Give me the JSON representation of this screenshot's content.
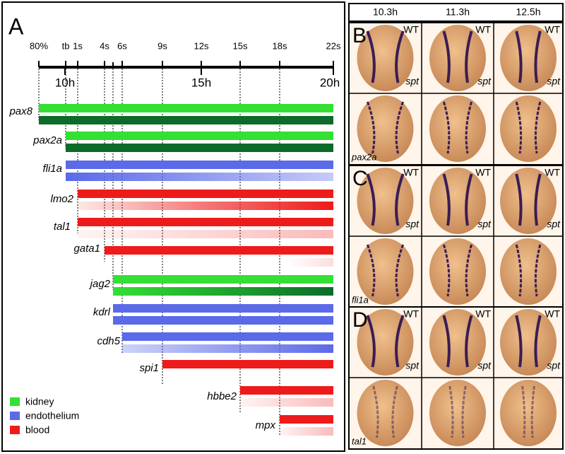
{
  "panel_a": {
    "label": "A",
    "stages": [
      "80%",
      "tb",
      "1s",
      "4s",
      "6s",
      "9s",
      "12s",
      "15s",
      "18s",
      "22s"
    ],
    "hours": [
      "10h",
      "15h",
      "20h"
    ],
    "genes": [
      {
        "name": "pax8",
        "color": "#33e033"
      },
      {
        "name": "pax2a",
        "color": "#33e033"
      },
      {
        "name": "fli1a",
        "color": "#5a6ae8"
      },
      {
        "name": "lmo2",
        "color": "#ee1b1b"
      },
      {
        "name": "tal1",
        "color": "#ee1b1b"
      },
      {
        "name": "gata1",
        "color": "#ee1b1b"
      },
      {
        "name": "jag2",
        "color": "#33e033"
      },
      {
        "name": "kdrl",
        "color": "#5a6ae8"
      },
      {
        "name": "cdh5",
        "color": "#5a6ae8"
      },
      {
        "name": "spi1",
        "color": "#ee1b1b"
      },
      {
        "name": "hbbe2",
        "color": "#ee1b1b"
      },
      {
        "name": "mpx",
        "color": "#ee1b1b"
      }
    ],
    "legend": [
      {
        "label": "kidney",
        "color": "#33e033"
      },
      {
        "label": "endothelium",
        "color": "#5a6ae8"
      },
      {
        "label": "blood",
        "color": "#ee1b1b"
      }
    ]
  },
  "times": [
    "10.3h",
    "11.3h",
    "12.5h"
  ],
  "panels": [
    {
      "label": "B",
      "gene": "pax2a",
      "wt": "WT",
      "mutant": "spt"
    },
    {
      "label": "C",
      "gene": "fli1a",
      "wt": "WT",
      "mutant": "spt"
    },
    {
      "label": "D",
      "gene": "tal1",
      "wt": "WT",
      "mutant": "spt"
    }
  ]
}
